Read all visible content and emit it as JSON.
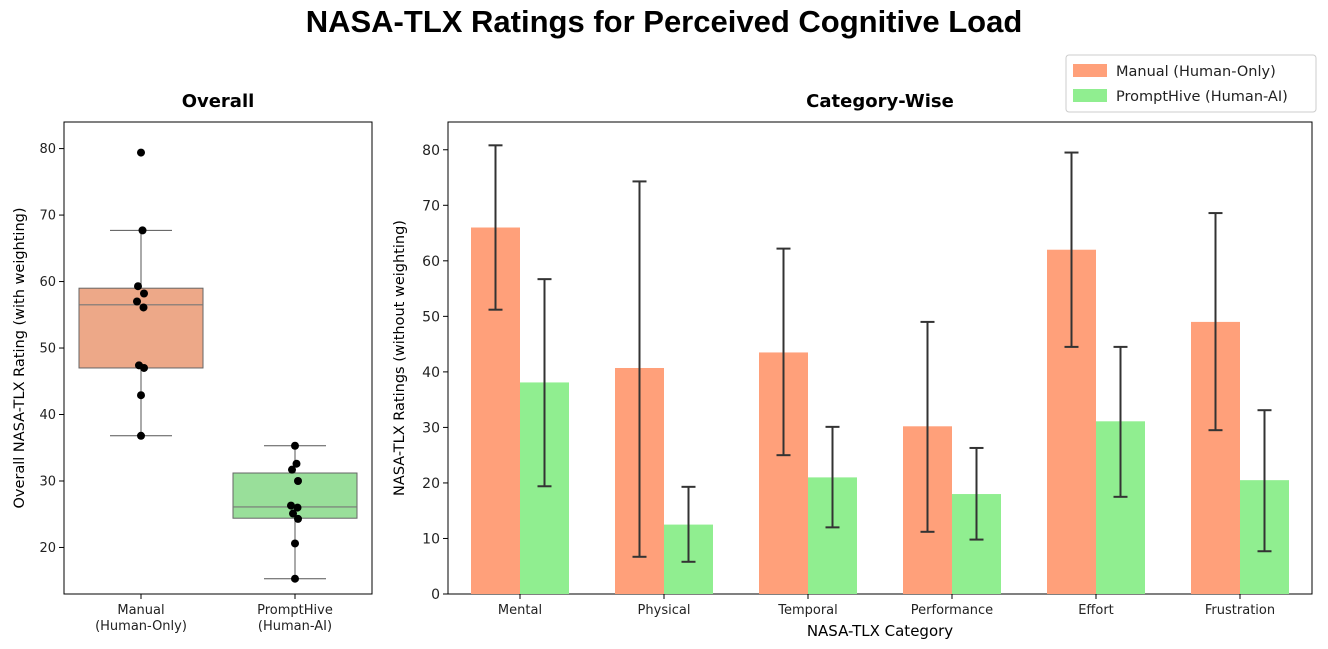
{
  "page_title": "NASA-TLX Ratings for Perceived Cognitive Load",
  "colors": {
    "manual": "#FFA07A",
    "prompthive": "#90EE90",
    "manual_box": "#EDA888",
    "prompthive_box": "#99DF9A"
  },
  "chart_data": [
    {
      "type": "box",
      "title": "Overall",
      "xlabel": "",
      "ylabel": "Overall NASA-TLX Rating (with weighting)",
      "ylim": [
        13,
        84
      ],
      "yticks": [
        20,
        30,
        40,
        50,
        60,
        70,
        80
      ],
      "categories": [
        {
          "line1": "Manual",
          "line2": "(Human-Only)"
        },
        {
          "line1": "PromptHive",
          "line2": "(Human-AI)"
        }
      ],
      "boxes": [
        {
          "name": "Manual (Human-Only)",
          "q1": 47,
          "median": 56.5,
          "q3": 59,
          "whisker_low": 36.8,
          "whisker_high": 67.7,
          "points": [
            79.4,
            67.7,
            59.3,
            58.2,
            57,
            56.1,
            47.4,
            47.0,
            42.9,
            36.8
          ]
        },
        {
          "name": "PromptHive (Human-AI)",
          "q1": 24.4,
          "median": 26.1,
          "q3": 31.2,
          "whisker_low": 15.3,
          "whisker_high": 35.3,
          "points": [
            35.3,
            32.6,
            31.7,
            30.0,
            26.3,
            26.0,
            25.1,
            24.3,
            20.6,
            15.3
          ]
        }
      ]
    },
    {
      "type": "bar",
      "title": "Category-Wise",
      "xlabel": "NASA-TLX Category",
      "ylabel": "NASA-TLX Ratings (without weighting)",
      "ylim": [
        0,
        85
      ],
      "yticks": [
        0,
        10,
        20,
        30,
        40,
        50,
        60,
        70,
        80
      ],
      "categories": [
        "Mental",
        "Physical",
        "Temporal",
        "Performance",
        "Effort",
        "Frustration"
      ],
      "legend_position": "top-right",
      "series": [
        {
          "name": "Manual (Human-Only)",
          "values": [
            66,
            40.7,
            43.5,
            30.2,
            62,
            49
          ],
          "err_low": [
            51.2,
            6.7,
            25,
            11.2,
            44.5,
            29.5
          ],
          "err_high": [
            80.8,
            74.3,
            62.2,
            49,
            79.5,
            68.6
          ]
        },
        {
          "name": "PromptHive (Human-AI)",
          "values": [
            38.1,
            12.5,
            21,
            18,
            31.1,
            20.5
          ],
          "err_low": [
            19.4,
            5.8,
            12,
            9.8,
            17.5,
            7.7
          ],
          "err_high": [
            56.7,
            19.3,
            30.1,
            26.3,
            44.5,
            33.1
          ]
        }
      ]
    }
  ]
}
